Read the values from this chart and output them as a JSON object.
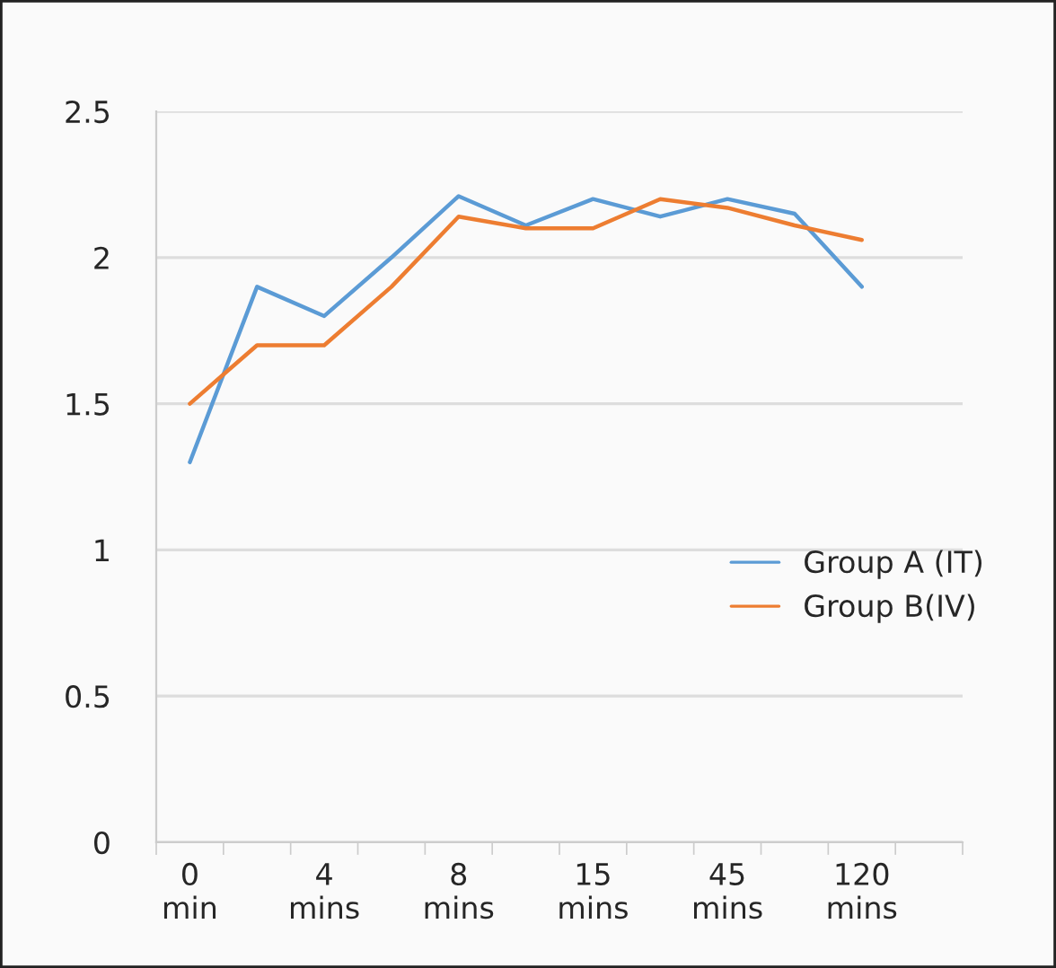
{
  "chart_data": {
    "type": "line",
    "categories": [
      "0 min",
      null,
      "4 mins",
      null,
      "8 mins",
      null,
      "15 mins",
      null,
      "45 mins",
      null,
      "120 mins",
      null
    ],
    "series": [
      {
        "name": "Group A (IT)",
        "color": "#5b9bd5",
        "values": [
          1.3,
          1.9,
          1.8,
          2.0,
          2.21,
          2.11,
          2.2,
          2.14,
          2.2,
          2.15,
          1.9,
          null
        ]
      },
      {
        "name": "Group B(IV)",
        "color": "#ed7d31",
        "values": [
          1.5,
          1.7,
          1.7,
          1.9,
          2.14,
          2.1,
          2.1,
          2.2,
          2.17,
          2.11,
          2.06,
          null
        ]
      }
    ],
    "ylim": [
      0,
      2.5
    ],
    "yticks": [
      0,
      0.5,
      1,
      1.5,
      2,
      2.5
    ],
    "grid": "y",
    "legend": "right",
    "marker": "none",
    "line_style": "solid"
  }
}
